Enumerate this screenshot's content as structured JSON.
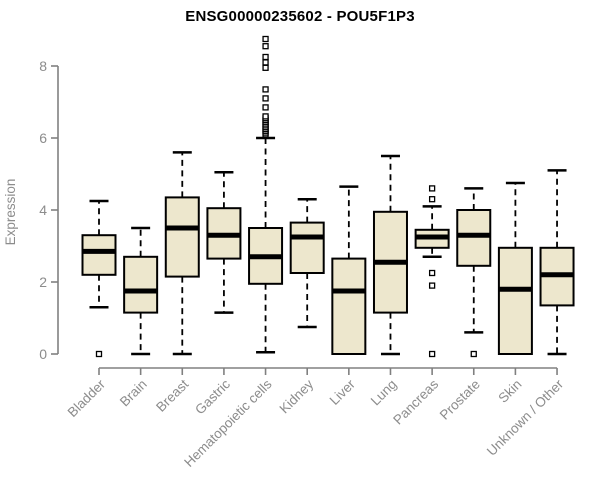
{
  "chart_data": {
    "type": "boxplot",
    "title": "ENSG00000235602 - POU5F1P3",
    "ylabel": "Expression",
    "ylim": [
      0,
      8.85
    ],
    "yticks": [
      0,
      2,
      4,
      6,
      8
    ],
    "grid": false,
    "legend": "none",
    "categories": [
      "Bladder",
      "Brain",
      "Breast",
      "Gastric",
      "Hematopoietic cells",
      "Kidney",
      "Liver",
      "Lung",
      "Pancreas",
      "Prostate",
      "Skin",
      "Unknown / Other"
    ],
    "boxes": [
      {
        "category": "Bladder",
        "low": 1.3,
        "q1": 2.2,
        "median": 2.85,
        "q3": 3.3,
        "high": 4.25,
        "outliers": [
          0
        ]
      },
      {
        "category": "Brain",
        "low": 0,
        "q1": 1.15,
        "median": 1.75,
        "q3": 2.7,
        "high": 3.5,
        "outliers": []
      },
      {
        "category": "Breast",
        "low": 0,
        "q1": 2.15,
        "median": 3.5,
        "q3": 4.35,
        "high": 5.6,
        "outliers": []
      },
      {
        "category": "Gastric",
        "low": 1.15,
        "q1": 2.65,
        "median": 3.3,
        "q3": 4.05,
        "high": 5.05,
        "outliers": []
      },
      {
        "category": "Hematopoietic cells",
        "low": 0.05,
        "q1": 1.95,
        "median": 2.7,
        "q3": 3.5,
        "high": 6.0,
        "outliers": [
          6.1,
          6.15,
          6.2,
          6.25,
          6.3,
          6.35,
          6.4,
          6.45,
          6.5,
          6.55,
          6.6,
          6.85,
          7.1,
          7.35,
          7.95,
          8.1,
          8.25,
          8.55,
          8.75
        ]
      },
      {
        "category": "Kidney",
        "low": 0.75,
        "q1": 2.25,
        "median": 3.25,
        "q3": 3.65,
        "high": 4.3,
        "outliers": []
      },
      {
        "category": "Liver",
        "low": 0,
        "q1": 0,
        "median": 1.75,
        "q3": 2.65,
        "high": 4.65,
        "outliers": []
      },
      {
        "category": "Lung",
        "low": 0,
        "q1": 1.15,
        "median": 2.55,
        "q3": 3.95,
        "high": 5.5,
        "outliers": []
      },
      {
        "category": "Pancreas",
        "low": 2.7,
        "q1": 2.95,
        "median": 3.25,
        "q3": 3.45,
        "high": 4.1,
        "outliers": [
          4.6,
          4.3,
          2.25,
          1.9,
          0
        ]
      },
      {
        "category": "Prostate",
        "low": 0.6,
        "q1": 2.45,
        "median": 3.3,
        "q3": 4.0,
        "high": 4.6,
        "outliers": [
          0
        ]
      },
      {
        "category": "Skin",
        "low": 0,
        "q1": 0,
        "median": 1.8,
        "q3": 2.95,
        "high": 4.75,
        "outliers": []
      },
      {
        "category": "Unknown / Other",
        "low": 0,
        "q1": 1.35,
        "median": 2.2,
        "q3": 2.95,
        "high": 5.1,
        "outliers": []
      }
    ],
    "colors": {
      "box_fill": "#EDE7CD",
      "box_border": "#000000",
      "median": "#000000",
      "whisker": "#000000",
      "axis": "#808080",
      "tick_label": "#8c8c8c",
      "title": "#000000",
      "background": "#ffffff"
    }
  }
}
